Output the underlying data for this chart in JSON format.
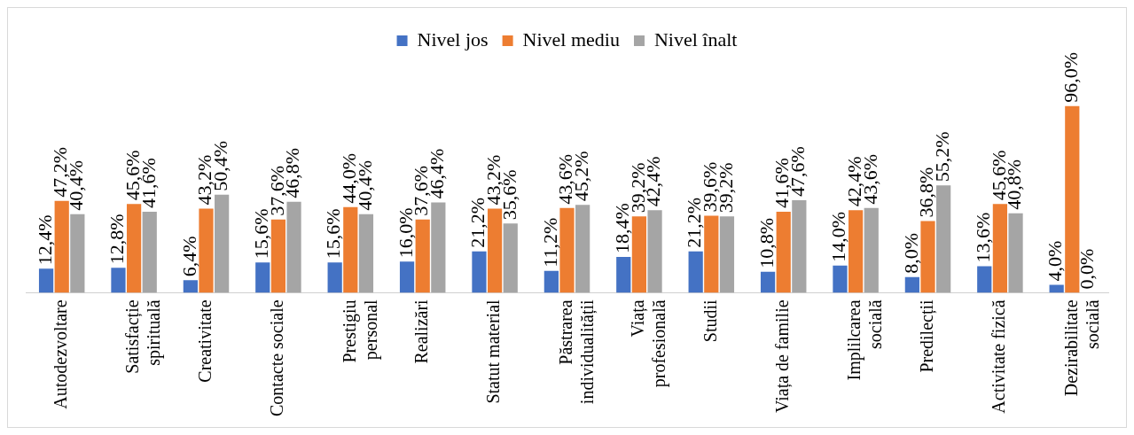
{
  "chart_data": {
    "type": "bar",
    "categories": [
      "Autodezvoltare",
      "Satisfacție spirituală",
      "Creativitate",
      "Contacte sociale",
      "Prestigiu personal",
      "Realizări",
      "Statut material",
      "Păstrarea individualității",
      "Viața profesională",
      "Studii",
      "Viața de familie",
      "Implilcarea socială",
      "Predilecții",
      "Activitate fizică",
      "Dezirabilitate socială"
    ],
    "series": [
      {
        "name": "Nivel jos",
        "color": "#4472c4",
        "values": [
          12.4,
          12.8,
          6.4,
          15.6,
          15.6,
          16.0,
          21.2,
          11.2,
          18.4,
          21.2,
          10.8,
          14.0,
          8.0,
          13.6,
          4.0
        ],
        "value_labels": [
          "12,4%",
          "12,8%",
          "6,4%",
          "15,6%",
          "15,6%",
          "16,0%",
          "21,2%",
          "11,2%",
          "18,4%",
          "21,2%",
          "10,8%",
          "14,0%",
          "8,0%",
          "13,6%",
          "4,0%"
        ]
      },
      {
        "name": "Nivel mediu",
        "color": "#ed7d31",
        "values": [
          47.2,
          45.6,
          43.2,
          37.6,
          44.0,
          37.6,
          43.2,
          43.6,
          39.2,
          39.6,
          41.6,
          42.4,
          36.8,
          45.6,
          96.0
        ],
        "value_labels": [
          "47,2%",
          "45,6%",
          "43,2%",
          "37,6%",
          "44,0%",
          "37,6%",
          "43,2%",
          "43,6%",
          "39,2%",
          "39,6%",
          "41,6%",
          "42,4%",
          "36,8%",
          "45,6%",
          "96,0%"
        ]
      },
      {
        "name": "Nivel înalt",
        "color": "#a5a5a5",
        "values": [
          40.4,
          41.6,
          50.4,
          46.8,
          40.4,
          46.4,
          35.6,
          45.2,
          42.4,
          39.2,
          47.6,
          43.6,
          55.2,
          40.8,
          0.0
        ],
        "value_labels": [
          "40,4%",
          "41,6%",
          "50,4%",
          "46,8%",
          "40,4%",
          "46,4%",
          "35,6%",
          "45,2%",
          "42,4%",
          "39,2%",
          "47,6%",
          "43,6%",
          "55,2%",
          "40,8%",
          "0,0%"
        ]
      }
    ],
    "legend": "top",
    "grid": false
  }
}
